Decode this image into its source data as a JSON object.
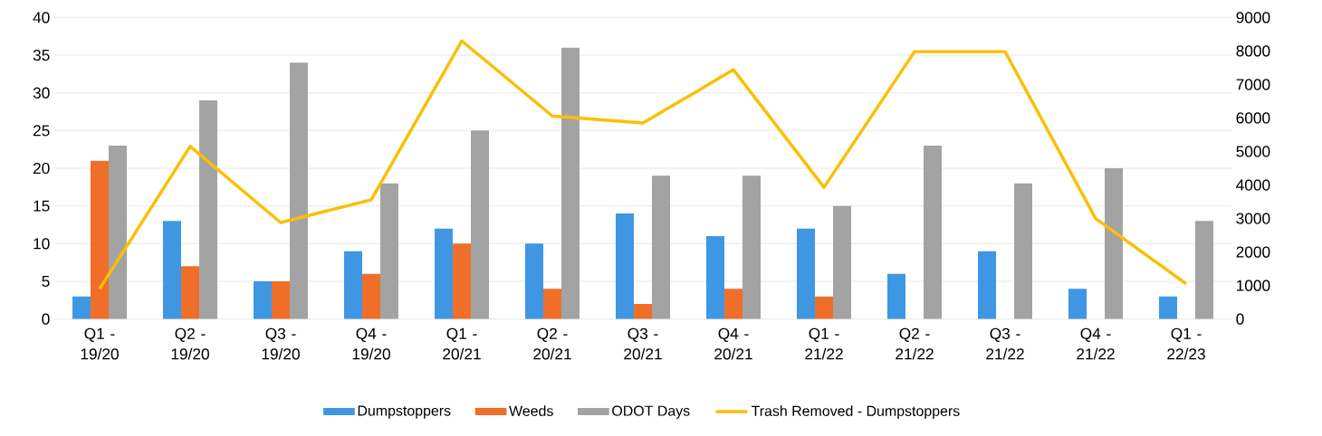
{
  "chart_data": {
    "type": "bar",
    "categories": [
      "Q1 - 19/20",
      "Q2 - 19/20",
      "Q3 - 19/20",
      "Q4 - 19/20",
      "Q1 - 20/21",
      "Q2 - 20/21",
      "Q3 - 20/21",
      "Q4 - 20/21",
      "Q1 - 21/22",
      "Q2 - 21/22",
      "Q3 - 21/22",
      "Q4 - 21/22",
      "Q1 - 22/23"
    ],
    "series": [
      {
        "name": "Dumpstoppers",
        "color": "#3f97e4",
        "values": [
          3,
          13,
          5,
          9,
          12,
          10,
          14,
          11,
          12,
          6,
          9,
          4,
          3
        ]
      },
      {
        "name": "Weeds",
        "color": "#ef6f2a",
        "values": [
          21,
          7,
          5,
          6,
          10,
          4,
          2,
          4,
          3,
          null,
          null,
          null,
          null
        ]
      },
      {
        "name": "ODOT Days",
        "color": "#a3a3a3",
        "values": [
          23,
          29,
          34,
          18,
          25,
          36,
          19,
          19,
          15,
          23,
          18,
          20,
          13
        ]
      },
      {
        "name": "Trash Removed - Dumpstoppers",
        "color": "#fbbf00",
        "type": "line",
        "axis": "y2",
        "values": [
          900,
          5150,
          2880,
          3560,
          8300,
          6060,
          5850,
          7440,
          3930,
          7980,
          7980,
          3000,
          1050
        ]
      }
    ],
    "ylim": [
      0,
      40
    ],
    "yticks": [
      0,
      5,
      10,
      15,
      20,
      25,
      30,
      35,
      40
    ],
    "y2lim": [
      0,
      9000
    ],
    "y2ticks": [
      0,
      1000,
      2000,
      3000,
      4000,
      5000,
      6000,
      7000,
      8000,
      9000
    ],
    "grid": "y",
    "legend": "bottom",
    "marker": "none",
    "line_style": "solid"
  }
}
